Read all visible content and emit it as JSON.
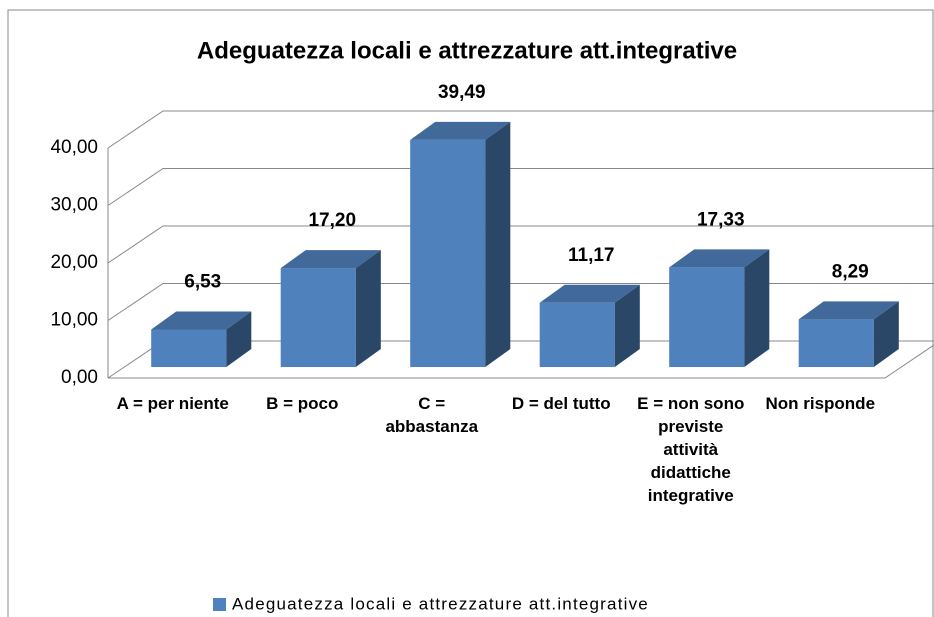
{
  "chart_data": {
    "type": "bar3d",
    "title": "Adeguatezza locali e attrezzature att.integrative",
    "categories": [
      "A = per niente",
      "B = poco",
      "C = abbastanza",
      "D = del tutto",
      "E = non sono previste attività didattiche integrative",
      "Non risponde"
    ],
    "series": [
      {
        "name": "Adeguatezza locali e attrezzature att.integrative",
        "color": "#4f81bd",
        "values": [
          6.53,
          17.2,
          39.49,
          11.17,
          17.33,
          8.29
        ],
        "value_labels": [
          "6,53",
          "17,20",
          "39,49",
          "11,17",
          "17,33",
          "8,29"
        ]
      }
    ],
    "ylim": [
      0,
      40
    ],
    "yticks": [
      {
        "value": 0,
        "label": "0,00"
      },
      {
        "value": 10,
        "label": "10,00"
      },
      {
        "value": 20,
        "label": "20,00"
      },
      {
        "value": 30,
        "label": "30,00"
      },
      {
        "value": 40,
        "label": "40,00"
      }
    ],
    "grid": true,
    "legend": "bottom"
  }
}
